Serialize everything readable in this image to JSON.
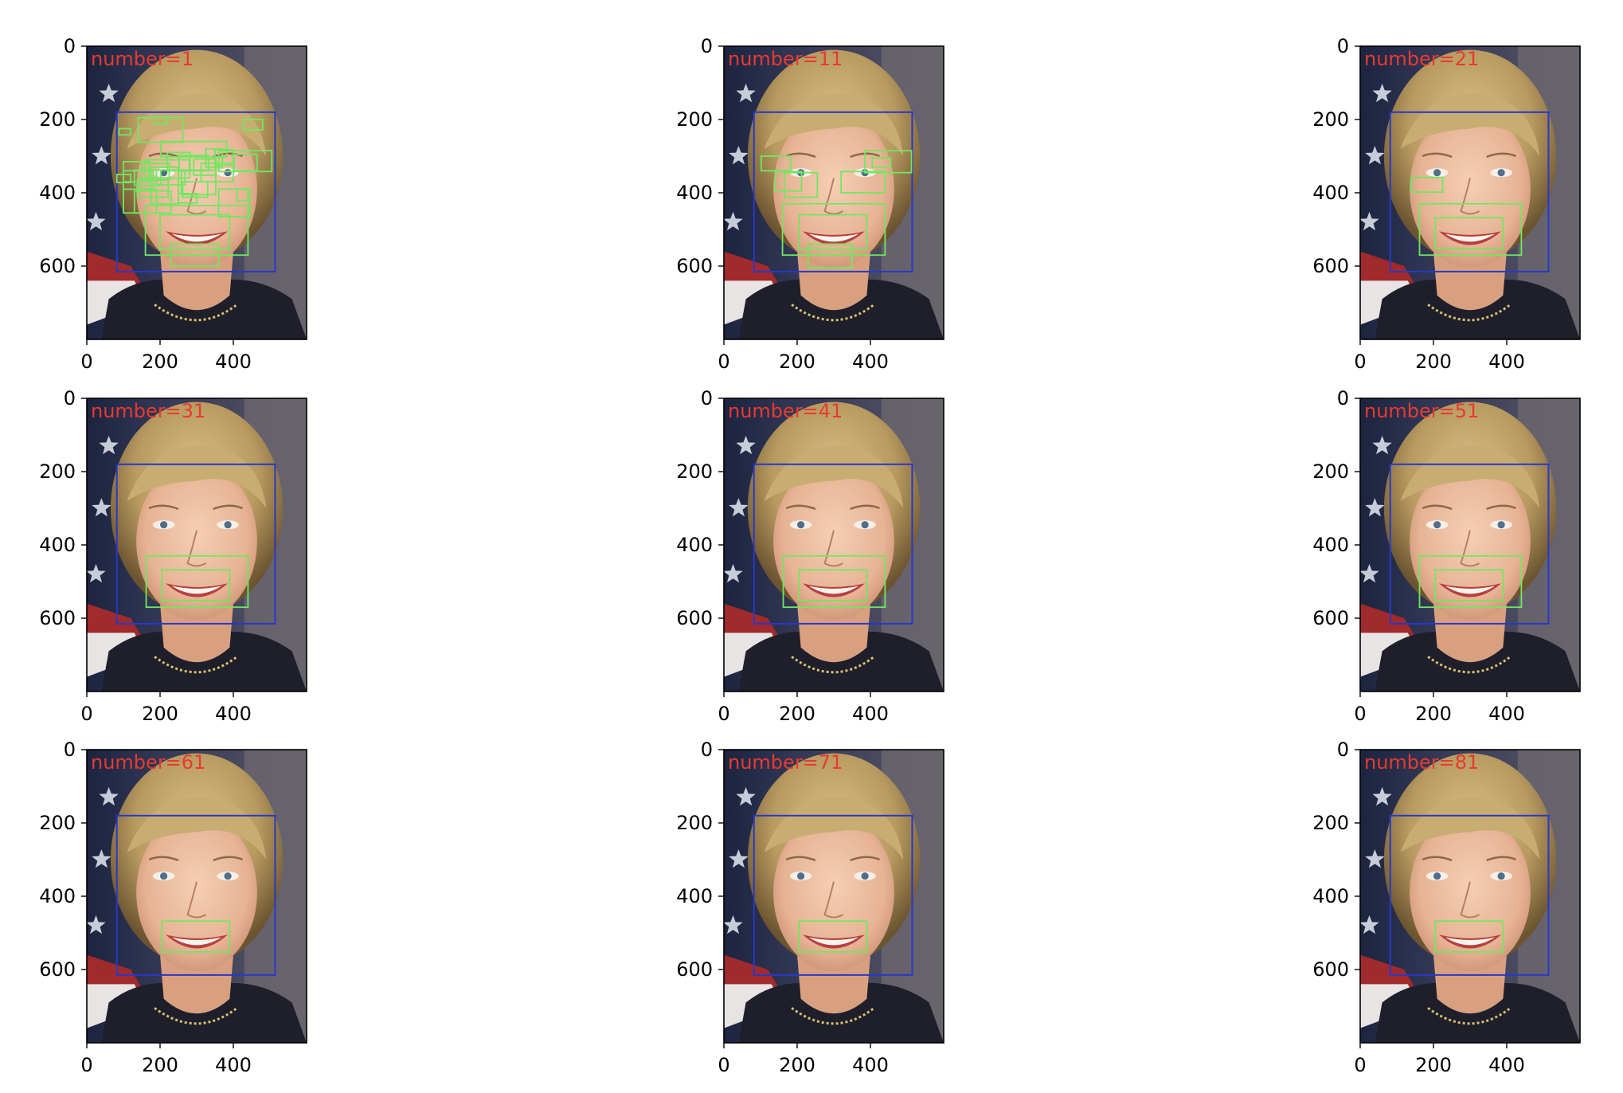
{
  "figure": {
    "grid": {
      "rows": 3,
      "cols": 3
    },
    "image_extent": {
      "x": [
        0,
        600
      ],
      "y": [
        800,
        0
      ]
    },
    "x_ticks": [
      0,
      200,
      400
    ],
    "y_ticks": [
      0,
      200,
      400,
      600
    ],
    "colors": {
      "face_box": "#2838c8",
      "candidate_box": "#70e860",
      "caption": "#e83a30",
      "axes": "#000000"
    }
  },
  "chart_data": [
    {
      "type": "image",
      "caption": "number=1",
      "face_box": [
        82,
        180,
        514,
        615
      ],
      "candidate_boxes": [
        [
          82,
          350,
          120,
          372
        ],
        [
          88,
          225,
          120,
          242
        ],
        [
          140,
          195,
          262,
          262
        ],
        [
          185,
          195,
          220,
          212
        ],
        [
          428,
          200,
          480,
          228
        ],
        [
          202,
          260,
          382,
          302
        ],
        [
          220,
          290,
          282,
          340
        ],
        [
          160,
          310,
          280,
          360
        ],
        [
          100,
          315,
          170,
          370
        ],
        [
          100,
          340,
          182,
          390
        ],
        [
          150,
          320,
          225,
          365
        ],
        [
          130,
          338,
          202,
          380
        ],
        [
          325,
          280,
          370,
          330
        ],
        [
          350,
          282,
          400,
          325
        ],
        [
          360,
          285,
          505,
          342
        ],
        [
          402,
          295,
          465,
          340
        ],
        [
          252,
          298,
          332,
          340
        ],
        [
          292,
          308,
          352,
          352
        ],
        [
          312,
          320,
          400,
          370
        ],
        [
          190,
          338,
          268,
          378
        ],
        [
          258,
          338,
          352,
          405
        ],
        [
          140,
          360,
          222,
          412
        ],
        [
          130,
          395,
          230,
          455
        ],
        [
          100,
          390,
          190,
          455
        ],
        [
          175,
          330,
          250,
          430
        ],
        [
          262,
          370,
          330,
          412
        ],
        [
          250,
          402,
          300,
          428
        ],
        [
          410,
          390,
          440,
          422
        ],
        [
          360,
          390,
          445,
          465
        ],
        [
          160,
          435,
          440,
          570
        ],
        [
          200,
          460,
          390,
          555
        ],
        [
          230,
          540,
          360,
          600
        ]
      ]
    },
    {
      "type": "image",
      "caption": "number=11",
      "face_box": [
        82,
        180,
        514,
        615
      ],
      "candidate_boxes": [
        [
          102,
          300,
          182,
          340
        ],
        [
          140,
          342,
          212,
          395
        ],
        [
          165,
          345,
          255,
          412
        ],
        [
          320,
          342,
          440,
          400
        ],
        [
          385,
          285,
          512,
          345
        ],
        [
          405,
          305,
          455,
          330
        ],
        [
          160,
          430,
          440,
          570
        ],
        [
          205,
          460,
          390,
          555
        ],
        [
          230,
          540,
          350,
          605
        ]
      ]
    },
    {
      "type": "image",
      "caption": "number=21",
      "face_box": [
        82,
        180,
        514,
        615
      ],
      "candidate_boxes": [
        [
          140,
          358,
          225,
          398
        ],
        [
          162,
          430,
          440,
          570
        ],
        [
          205,
          468,
          390,
          552
        ]
      ]
    },
    {
      "type": "image",
      "caption": "number=31",
      "face_box": [
        82,
        180,
        514,
        615
      ],
      "candidate_boxes": [
        [
          162,
          430,
          440,
          570
        ],
        [
          205,
          468,
          390,
          552
        ]
      ]
    },
    {
      "type": "image",
      "caption": "number=41",
      "face_box": [
        82,
        180,
        514,
        615
      ],
      "candidate_boxes": [
        [
          162,
          430,
          440,
          570
        ],
        [
          205,
          468,
          390,
          552
        ]
      ]
    },
    {
      "type": "image",
      "caption": "number=51",
      "face_box": [
        82,
        180,
        514,
        615
      ],
      "candidate_boxes": [
        [
          162,
          430,
          440,
          570
        ],
        [
          205,
          468,
          390,
          552
        ]
      ]
    },
    {
      "type": "image",
      "caption": "number=61",
      "face_box": [
        82,
        180,
        514,
        615
      ],
      "candidate_boxes": [
        [
          205,
          468,
          390,
          552
        ]
      ]
    },
    {
      "type": "image",
      "caption": "number=71",
      "face_box": [
        82,
        180,
        514,
        615
      ],
      "candidate_boxes": [
        [
          205,
          468,
          390,
          552
        ]
      ]
    },
    {
      "type": "image",
      "caption": "number=81",
      "face_box": [
        82,
        180,
        514,
        615
      ],
      "candidate_boxes": [
        [
          205,
          468,
          390,
          552
        ]
      ]
    }
  ]
}
